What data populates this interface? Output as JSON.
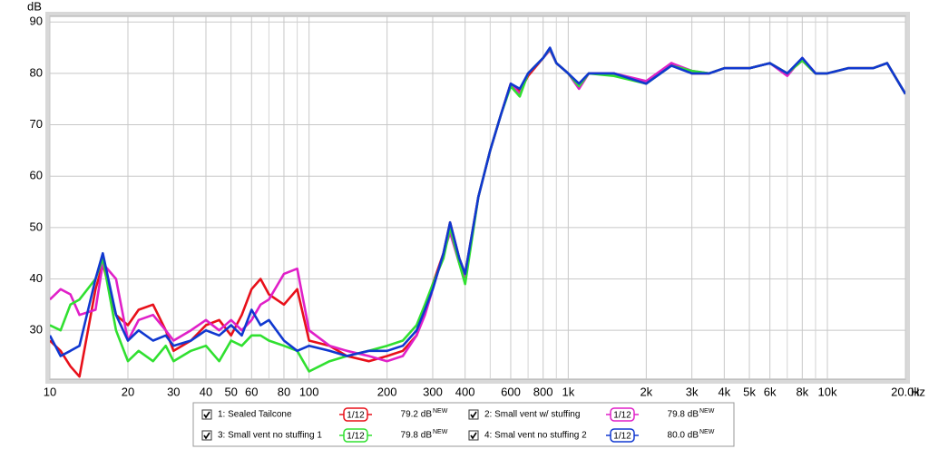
{
  "chart_data": {
    "type": "line",
    "y_label": "dB",
    "x_label": "Hz",
    "x_scale": "log",
    "xlim": [
      10,
      20000
    ],
    "ylim": [
      20.5,
      91.1
    ],
    "yticks": [
      30,
      40,
      50,
      60,
      70,
      80,
      90
    ],
    "xticks": [
      10,
      20,
      30,
      40,
      50,
      60,
      80,
      100,
      200,
      300,
      400,
      600,
      800,
      {
        "value": 1000,
        "label": "1k"
      },
      {
        "value": 2000,
        "label": "2k"
      },
      {
        "value": 3000,
        "label": "3k"
      },
      {
        "value": 4000,
        "label": "4k"
      },
      {
        "value": 5000,
        "label": "5k"
      },
      {
        "value": 6000,
        "label": "6k"
      },
      {
        "value": 8000,
        "label": "8k"
      },
      {
        "value": 10000,
        "label": "10k"
      },
      {
        "value": 20000,
        "label": "20.0k"
      }
    ],
    "x_minor_gridlines": [
      70,
      90,
      500,
      700,
      900,
      7000,
      9000
    ],
    "grid": true,
    "x": [
      10,
      11,
      12,
      13,
      15,
      16,
      18,
      20,
      22,
      25,
      28,
      30,
      35,
      40,
      45,
      50,
      55,
      60,
      65,
      70,
      80,
      90,
      100,
      120,
      140,
      170,
      200,
      230,
      260,
      280,
      300,
      330,
      350,
      380,
      400,
      450,
      500,
      550,
      600,
      650,
      700,
      800,
      850,
      900,
      1000,
      1100,
      1200,
      1500,
      2000,
      2500,
      3000,
      3500,
      4000,
      5000,
      6000,
      7000,
      8000,
      9000,
      10000,
      12000,
      15000,
      17000,
      20000
    ],
    "series": [
      {
        "name": "1: Sealed Tailcone",
        "color": "#e8101a",
        "smoothing": "1/12",
        "level": "79.2 dB",
        "tag": "NEW",
        "values": [
          28,
          26,
          23,
          21,
          38,
          43,
          33,
          31,
          34,
          35,
          30,
          26,
          28,
          31,
          32,
          29,
          33,
          38,
          40,
          37,
          35,
          38,
          28,
          27,
          25,
          24,
          25,
          26,
          29,
          34,
          39,
          45,
          51,
          44,
          41,
          56,
          65,
          72,
          78,
          76.5,
          79.5,
          83,
          84.8,
          82,
          80,
          77.5,
          80,
          80,
          78,
          82,
          80,
          80,
          81,
          81,
          82,
          80,
          82.5,
          80,
          80,
          81,
          81,
          82,
          76
        ]
      },
      {
        "name": "2: Small vent w/ stuffing",
        "color": "#e020c8",
        "smoothing": "1/12",
        "level": "79.8 dB",
        "tag": "NEW",
        "values": [
          36,
          38,
          37,
          33,
          34,
          43,
          40,
          28,
          32,
          33,
          30,
          28,
          30,
          32,
          30,
          32,
          30,
          32,
          35,
          36,
          41,
          42,
          30,
          27,
          26,
          25,
          24,
          25,
          29,
          33,
          38,
          45,
          49,
          43,
          40,
          56,
          65,
          72,
          78,
          76,
          80,
          83,
          84.5,
          82,
          80,
          77,
          80,
          80,
          78.5,
          82,
          80.5,
          80,
          81,
          81,
          82,
          79.5,
          83,
          80,
          80,
          81,
          81,
          82,
          76
        ]
      },
      {
        "name": "3: Small vent no stuffing 1",
        "color": "#30e030",
        "smoothing": "1/12",
        "level": "79.8 dB",
        "tag": "NEW",
        "values": [
          31,
          30,
          35,
          36,
          40,
          44,
          30,
          24,
          26,
          24,
          27,
          24,
          26,
          27,
          24,
          28,
          27,
          29,
          29,
          28,
          27,
          26,
          22,
          24,
          25,
          26,
          27,
          28,
          31,
          35,
          39,
          44,
          50,
          43,
          39,
          56,
          65,
          72,
          77.5,
          75.5,
          80,
          83,
          84.8,
          82,
          80,
          77.5,
          80,
          79.5,
          78,
          81.5,
          80.5,
          80,
          81,
          81,
          82,
          80,
          82.5,
          80,
          80,
          81,
          81,
          82,
          76
        ]
      },
      {
        "name": "4: Smal vent no stuffing 2",
        "color": "#1038d0",
        "smoothing": "1/12",
        "level": "80.0 dB",
        "tag": "NEW",
        "values": [
          29,
          25,
          26,
          27,
          40,
          45,
          33,
          28,
          30,
          28,
          29,
          27,
          28,
          30,
          29,
          31,
          29,
          34,
          31,
          32,
          28,
          26,
          27,
          26,
          25,
          26,
          26,
          27,
          30,
          34,
          38,
          45,
          51,
          44,
          41,
          56,
          65,
          72,
          78,
          77,
          80,
          83,
          85,
          82,
          80,
          78,
          80,
          80,
          78,
          81.5,
          80,
          80,
          81,
          81,
          82,
          80,
          83,
          80,
          80,
          81,
          81,
          82,
          76
        ]
      }
    ]
  }
}
